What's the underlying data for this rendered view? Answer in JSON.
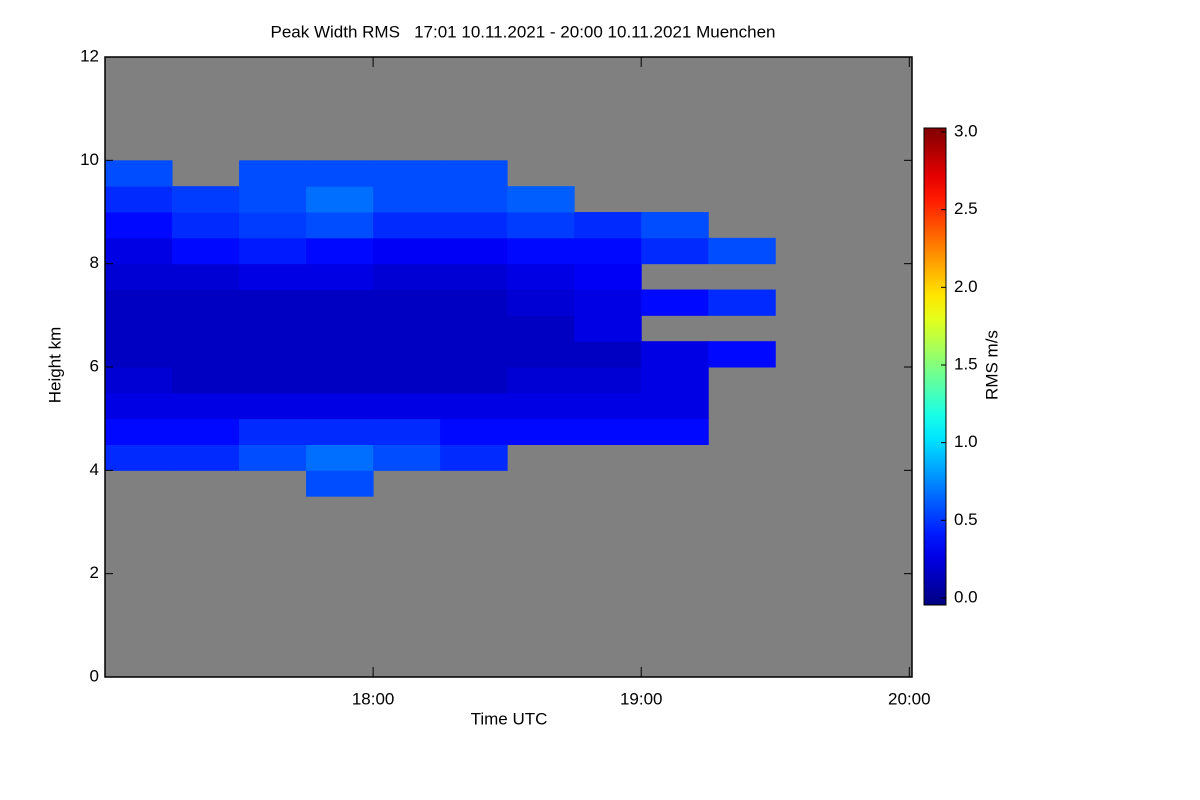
{
  "chart_data": {
    "type": "heatmap",
    "title": "Peak Width RMS   17:01 10.11.2021 - 20:00 10.11.2021 Muenchen",
    "x_label": "Time UTC",
    "y_label": "Height km",
    "colorbar_label": "RMS m/s",
    "x": [
      17.125,
      17.375,
      17.625,
      17.875,
      18.125,
      18.375,
      18.625,
      18.875,
      19.125,
      19.375,
      19.625,
      19.875
    ],
    "y": [
      0.25,
      0.75,
      1.25,
      1.75,
      2.25,
      2.75,
      3.25,
      3.75,
      4.25,
      4.75,
      5.25,
      5.75,
      6.25,
      6.75,
      7.25,
      7.75,
      8.25,
      8.75,
      9.25,
      9.75,
      10.25,
      10.75,
      11.25,
      11.75
    ],
    "z": [
      [
        null,
        null,
        null,
        null,
        null,
        null,
        null,
        null,
        null,
        null,
        null,
        null
      ],
      [
        null,
        null,
        null,
        null,
        null,
        null,
        null,
        null,
        null,
        null,
        null,
        null
      ],
      [
        null,
        null,
        null,
        null,
        null,
        null,
        null,
        null,
        null,
        null,
        null,
        null
      ],
      [
        null,
        null,
        null,
        null,
        null,
        null,
        null,
        null,
        null,
        null,
        null,
        null
      ],
      [
        null,
        null,
        null,
        null,
        null,
        null,
        null,
        null,
        null,
        null,
        null,
        null
      ],
      [
        null,
        null,
        null,
        null,
        null,
        null,
        null,
        null,
        null,
        null,
        null,
        null
      ],
      [
        null,
        null,
        null,
        null,
        null,
        null,
        null,
        null,
        null,
        null,
        null,
        null
      ],
      [
        null,
        null,
        null,
        0.6,
        null,
        null,
        null,
        null,
        null,
        null,
        null,
        null
      ],
      [
        0.5,
        0.5,
        0.6,
        0.7,
        0.6,
        0.5,
        null,
        null,
        null,
        null,
        null,
        null
      ],
      [
        0.4,
        0.4,
        0.5,
        0.5,
        0.5,
        0.4,
        0.4,
        0.4,
        0.4,
        null,
        null,
        null
      ],
      [
        0.3,
        0.3,
        0.3,
        0.3,
        0.3,
        0.3,
        0.3,
        0.3,
        0.3,
        null,
        null,
        null
      ],
      [
        0.25,
        0.2,
        0.2,
        0.2,
        0.2,
        0.2,
        0.25,
        0.25,
        0.3,
        null,
        null,
        null
      ],
      [
        0.2,
        0.2,
        0.2,
        0.2,
        0.2,
        0.2,
        0.2,
        0.2,
        0.3,
        0.4,
        null,
        null
      ],
      [
        0.2,
        0.2,
        0.2,
        0.2,
        0.2,
        0.2,
        0.2,
        0.3,
        null,
        null,
        null,
        null
      ],
      [
        0.2,
        0.2,
        0.2,
        0.2,
        0.2,
        0.2,
        0.25,
        0.3,
        0.4,
        0.5,
        null,
        null
      ],
      [
        0.25,
        0.25,
        0.3,
        0.3,
        0.25,
        0.25,
        0.3,
        0.35,
        null,
        null,
        null,
        null
      ],
      [
        0.3,
        0.4,
        0.45,
        0.4,
        0.35,
        0.35,
        0.4,
        0.4,
        0.5,
        0.6,
        null,
        null
      ],
      [
        0.4,
        0.5,
        0.55,
        0.6,
        0.5,
        0.5,
        0.55,
        0.5,
        0.6,
        null,
        null,
        null
      ],
      [
        0.5,
        0.55,
        0.6,
        0.7,
        0.6,
        0.6,
        0.65,
        null,
        null,
        null,
        null,
        null
      ],
      [
        0.6,
        null,
        0.6,
        0.6,
        0.6,
        0.6,
        null,
        null,
        null,
        null,
        null,
        null
      ],
      [
        null,
        null,
        null,
        null,
        null,
        null,
        null,
        null,
        null,
        null,
        null,
        null
      ],
      [
        null,
        null,
        null,
        null,
        null,
        null,
        null,
        null,
        null,
        null,
        null,
        null
      ],
      [
        null,
        null,
        null,
        null,
        null,
        null,
        null,
        null,
        null,
        null,
        null,
        null
      ],
      [
        null,
        null,
        null,
        null,
        null,
        null,
        null,
        null,
        null,
        null,
        null,
        null
      ]
    ],
    "xlim": [
      17,
      20.01
    ],
    "ylim": [
      0,
      12
    ],
    "xticks": [
      {
        "value": 18,
        "label": "18:00"
      },
      {
        "value": 19,
        "label": "19:00"
      },
      {
        "value": 20,
        "label": "20:00"
      }
    ],
    "yticks": [
      0,
      2,
      4,
      6,
      8,
      10,
      12
    ],
    "zlim": [
      0,
      3
    ],
    "zticks": [
      {
        "value": 0,
        "label": "0.0"
      },
      {
        "value": 0.5,
        "label": "0.5"
      },
      {
        "value": 1,
        "label": "1.0"
      },
      {
        "value": 1.5,
        "label": "1.5"
      },
      {
        "value": 2,
        "label": "2.0"
      },
      {
        "value": 2.5,
        "label": "2.5"
      },
      {
        "value": 3,
        "label": "3.0"
      }
    ],
    "colormap": "jet",
    "background_color": "#808080"
  }
}
